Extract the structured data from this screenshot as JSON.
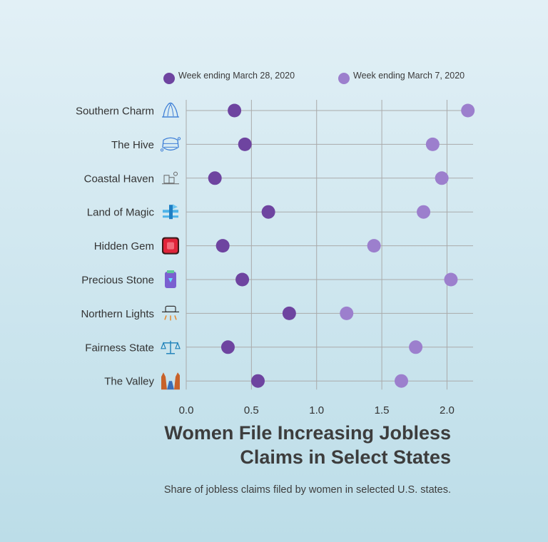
{
  "chart_data": {
    "type": "scatter",
    "title_lines": [
      "Women File Increasing Jobless",
      "Claims in Select States"
    ],
    "subtitle": "Share of jobless claims filed by women in selected U.S. states.",
    "categories": [
      "Southern Charm",
      "The Hive",
      "Coastal Haven",
      "Land of Magic",
      "Hidden Gem",
      "Precious Stone",
      "Northern Lights",
      "Fairness State",
      "The Valley"
    ],
    "category_icons": [
      "bell-icon",
      "beehive-icon",
      "coastal-houses-icon",
      "magic-wand-icon",
      "ruby-gem-icon",
      "precious-stone-icon",
      "aurora-icon",
      "scales-icon",
      "canyon-icon"
    ],
    "series": [
      {
        "name": "Week ending March 28, 2020",
        "color": "#6e44a0",
        "values": [
          0.37,
          0.45,
          0.22,
          0.63,
          0.28,
          0.43,
          0.79,
          0.32,
          0.55
        ]
      },
      {
        "name": "Week ending March 7, 2020",
        "color": "#9c7fcd",
        "values": [
          2.16,
          1.89,
          1.96,
          1.82,
          1.44,
          2.03,
          1.23,
          1.76,
          1.65
        ]
      }
    ],
    "xlim": [
      0,
      2.2
    ],
    "xticks": [
      "0.0",
      "0.5",
      "1.0",
      "1.5",
      "2.0"
    ],
    "xtick_values": [
      0,
      0.5,
      1.0,
      1.5,
      2.0
    ],
    "grid": true,
    "legend_position": "top"
  }
}
